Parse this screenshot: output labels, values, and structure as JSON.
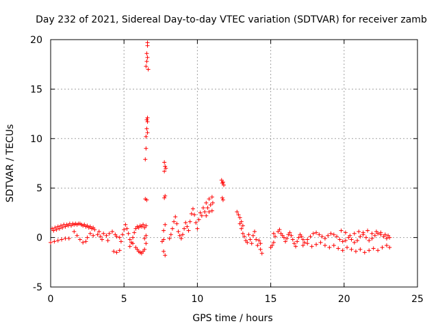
{
  "chart_data": {
    "type": "scatter",
    "title": "Day 232 of 2021, Sidereal Day-to-day VTEC variation (SDTVAR) for receiver zamb",
    "xlabel": "GPS time / hours",
    "ylabel": "SDTVAR / TECUs",
    "xlim": [
      0,
      25
    ],
    "ylim": [
      -5,
      20
    ],
    "xticks": [
      0,
      5,
      10,
      15,
      20,
      25
    ],
    "yticks": [
      -5,
      0,
      5,
      10,
      15,
      20
    ],
    "grid": true,
    "marker": "+",
    "color": "#ff0000",
    "series": [
      {
        "name": "SDTVAR",
        "points": [
          [
            0.0,
            -0.5
          ],
          [
            0.1,
            0.9
          ],
          [
            0.2,
            0.7
          ],
          [
            0.25,
            -0.4
          ],
          [
            0.3,
            1.0
          ],
          [
            0.4,
            0.8
          ],
          [
            0.5,
            -0.3
          ],
          [
            0.5,
            1.1
          ],
          [
            0.6,
            0.9
          ],
          [
            0.7,
            1.2
          ],
          [
            0.75,
            -0.2
          ],
          [
            0.8,
            1.0
          ],
          [
            0.9,
            1.3
          ],
          [
            1.0,
            1.1
          ],
          [
            1.0,
            -0.1
          ],
          [
            1.1,
            1.3
          ],
          [
            1.2,
            1.2
          ],
          [
            1.25,
            -0.1
          ],
          [
            1.3,
            1.4
          ],
          [
            1.4,
            1.2
          ],
          [
            1.5,
            1.4
          ],
          [
            1.6,
            1.3
          ],
          [
            1.7,
            1.4
          ],
          [
            1.8,
            1.3
          ],
          [
            1.9,
            1.4
          ],
          [
            2.0,
            1.4
          ],
          [
            2.1,
            1.3
          ],
          [
            2.2,
            1.2
          ],
          [
            2.3,
            1.3
          ],
          [
            2.4,
            1.1
          ],
          [
            2.5,
            1.2
          ],
          [
            2.6,
            1.0
          ],
          [
            2.7,
            1.1
          ],
          [
            2.8,
            0.9
          ],
          [
            2.9,
            1.0
          ],
          [
            3.0,
            0.8
          ],
          [
            1.6,
            0.6
          ],
          [
            1.8,
            0.2
          ],
          [
            2.0,
            -0.2
          ],
          [
            2.2,
            -0.5
          ],
          [
            2.4,
            -0.4
          ],
          [
            2.5,
            0.0
          ],
          [
            2.7,
            0.4
          ],
          [
            2.9,
            0.2
          ],
          [
            3.2,
            0.3
          ],
          [
            3.3,
            0.6
          ],
          [
            3.4,
            0.1
          ],
          [
            3.5,
            -0.2
          ],
          [
            3.6,
            0.4
          ],
          [
            3.8,
            0.2
          ],
          [
            3.9,
            -0.3
          ],
          [
            4.0,
            0.4
          ],
          [
            4.2,
            0.6
          ],
          [
            4.4,
            0.3
          ],
          [
            4.5,
            0.1
          ],
          [
            4.7,
            0.0
          ],
          [
            4.9,
            0.3
          ],
          [
            4.3,
            -1.4
          ],
          [
            4.5,
            -1.5
          ],
          [
            4.7,
            -1.3
          ],
          [
            4.8,
            -0.4
          ],
          [
            5.0,
            0.8
          ],
          [
            5.1,
            1.3
          ],
          [
            5.2,
            0.9
          ],
          [
            5.3,
            0.4
          ],
          [
            5.4,
            -0.2
          ],
          [
            5.5,
            -0.5
          ],
          [
            5.6,
            0.0
          ],
          [
            5.7,
            0.5
          ],
          [
            5.8,
            0.9
          ],
          [
            5.9,
            1.1
          ],
          [
            6.0,
            1.0
          ],
          [
            6.1,
            1.2
          ],
          [
            6.2,
            1.1
          ],
          [
            6.3,
            1.3
          ],
          [
            6.4,
            1.0
          ],
          [
            6.5,
            1.2
          ],
          [
            5.4,
            -0.9
          ],
          [
            5.6,
            -0.6
          ],
          [
            5.8,
            -1.0
          ],
          [
            5.9,
            -1.2
          ],
          [
            6.0,
            -1.4
          ],
          [
            6.1,
            -1.5
          ],
          [
            6.2,
            -1.6
          ],
          [
            6.3,
            -1.4
          ],
          [
            6.4,
            -1.2
          ],
          [
            6.5,
            -0.6
          ],
          [
            6.4,
            -0.1
          ],
          [
            6.5,
            0.2
          ],
          [
            6.45,
            3.9
          ],
          [
            6.55,
            3.8
          ],
          [
            6.45,
            7.9
          ],
          [
            6.5,
            9.0
          ],
          [
            6.5,
            10.2
          ],
          [
            6.55,
            11.0
          ],
          [
            6.6,
            10.6
          ],
          [
            6.55,
            11.9
          ],
          [
            6.6,
            12.1
          ],
          [
            6.6,
            11.7
          ],
          [
            6.5,
            17.3
          ],
          [
            6.55,
            17.8
          ],
          [
            6.6,
            18.2
          ],
          [
            6.55,
            18.6
          ],
          [
            6.65,
            17.0
          ],
          [
            6.6,
            19.7
          ],
          [
            6.6,
            19.4
          ],
          [
            7.6,
            -0.4
          ],
          [
            7.7,
            -0.2
          ],
          [
            7.7,
            0.7
          ],
          [
            7.8,
            1.3
          ],
          [
            7.7,
            -1.4
          ],
          [
            7.8,
            -1.8
          ],
          [
            7.75,
            4.0
          ],
          [
            7.8,
            4.2
          ],
          [
            7.75,
            6.7
          ],
          [
            7.8,
            7.2
          ],
          [
            7.75,
            7.6
          ],
          [
            7.85,
            7.0
          ],
          [
            8.1,
            -0.1
          ],
          [
            8.2,
            0.3
          ],
          [
            8.3,
            0.9
          ],
          [
            8.4,
            1.6
          ],
          [
            8.5,
            2.1
          ],
          [
            8.6,
            1.4
          ],
          [
            8.7,
            0.6
          ],
          [
            8.8,
            0.2
          ],
          [
            8.9,
            -0.1
          ],
          [
            9.0,
            0.3
          ],
          [
            9.1,
            0.9
          ],
          [
            9.2,
            1.5
          ],
          [
            9.3,
            1.1
          ],
          [
            9.4,
            0.7
          ],
          [
            9.5,
            1.6
          ],
          [
            9.6,
            2.4
          ],
          [
            9.7,
            2.9
          ],
          [
            9.8,
            2.3
          ],
          [
            9.9,
            1.5
          ],
          [
            10.0,
            0.9
          ],
          [
            10.1,
            1.8
          ],
          [
            10.2,
            2.5
          ],
          [
            10.3,
            2.2
          ],
          [
            10.4,
            3.0
          ],
          [
            10.5,
            2.6
          ],
          [
            10.6,
            3.5
          ],
          [
            10.7,
            3.0
          ],
          [
            10.8,
            3.9
          ],
          [
            10.9,
            3.3
          ],
          [
            11.0,
            4.1
          ],
          [
            11.05,
            3.5
          ],
          [
            10.6,
            2.2
          ],
          [
            10.8,
            2.6
          ],
          [
            11.0,
            2.7
          ],
          [
            11.7,
            4.0
          ],
          [
            11.75,
            3.8
          ],
          [
            11.65,
            5.8
          ],
          [
            11.7,
            5.5
          ],
          [
            11.8,
            5.3
          ],
          [
            11.75,
            5.6
          ],
          [
            12.7,
            2.6
          ],
          [
            12.8,
            2.3
          ],
          [
            12.9,
            2.0
          ],
          [
            13.0,
            1.6
          ],
          [
            13.1,
            1.2
          ],
          [
            12.9,
            1.4
          ],
          [
            13.0,
            0.9
          ],
          [
            13.1,
            0.4
          ],
          [
            13.2,
            0.1
          ],
          [
            13.3,
            -0.3
          ],
          [
            13.4,
            -0.5
          ],
          [
            13.5,
            0.3
          ],
          [
            13.6,
            -0.2
          ],
          [
            13.7,
            -0.6
          ],
          [
            13.8,
            0.2
          ],
          [
            13.9,
            0.6
          ],
          [
            14.0,
            -0.2
          ],
          [
            14.1,
            -0.8
          ],
          [
            14.2,
            -0.3
          ],
          [
            14.3,
            -1.2
          ],
          [
            14.4,
            -1.6
          ],
          [
            14.3,
            -0.6
          ],
          [
            15.0,
            -1.0
          ],
          [
            15.1,
            -0.8
          ],
          [
            15.2,
            -0.5
          ],
          [
            15.3,
            0.1
          ],
          [
            15.2,
            0.4
          ],
          [
            15.5,
            0.6
          ],
          [
            15.6,
            0.8
          ],
          [
            15.7,
            0.4
          ],
          [
            15.8,
            0.2
          ],
          [
            15.9,
            0.0
          ],
          [
            16.0,
            -0.4
          ],
          [
            16.1,
            -0.1
          ],
          [
            16.2,
            0.3
          ],
          [
            16.3,
            0.5
          ],
          [
            16.4,
            0.2
          ],
          [
            16.5,
            -0.2
          ],
          [
            16.6,
            -0.6
          ],
          [
            16.7,
            -0.9
          ],
          [
            16.8,
            -0.4
          ],
          [
            16.9,
            0.0
          ],
          [
            17.0,
            0.3
          ],
          [
            17.1,
            0.1
          ],
          [
            17.2,
            -0.2
          ],
          [
            17.3,
            -0.5
          ],
          [
            17.5,
            -0.2
          ],
          [
            17.7,
            0.1
          ],
          [
            17.9,
            0.4
          ],
          [
            18.1,
            0.5
          ],
          [
            18.3,
            0.3
          ],
          [
            18.5,
            0.1
          ],
          [
            18.7,
            -0.1
          ],
          [
            18.9,
            0.2
          ],
          [
            19.1,
            0.4
          ],
          [
            19.3,
            0.3
          ],
          [
            19.5,
            0.1
          ],
          [
            19.7,
            -0.2
          ],
          [
            19.9,
            -0.4
          ],
          [
            20.1,
            -0.3
          ],
          [
            20.3,
            0.0
          ],
          [
            20.5,
            -0.2
          ],
          [
            20.7,
            -0.5
          ],
          [
            20.9,
            -0.3
          ],
          [
            21.1,
            0.1
          ],
          [
            21.3,
            0.3
          ],
          [
            21.5,
            0.0
          ],
          [
            21.7,
            -0.3
          ],
          [
            21.9,
            -0.1
          ],
          [
            22.1,
            0.2
          ],
          [
            22.3,
            0.4
          ],
          [
            22.5,
            0.3
          ],
          [
            22.7,
            0.1
          ],
          [
            22.9,
            -0.1
          ],
          [
            23.1,
            0.0
          ],
          [
            17.2,
            -0.8
          ],
          [
            17.5,
            -0.6
          ],
          [
            17.8,
            -0.9
          ],
          [
            18.1,
            -0.7
          ],
          [
            18.4,
            -0.5
          ],
          [
            18.7,
            -0.8
          ],
          [
            19.0,
            -1.0
          ],
          [
            19.3,
            -0.8
          ],
          [
            19.6,
            -1.1
          ],
          [
            19.9,
            -1.3
          ],
          [
            20.2,
            -1.0
          ],
          [
            20.5,
            -1.2
          ],
          [
            20.8,
            -1.4
          ],
          [
            21.1,
            -1.2
          ],
          [
            21.4,
            -1.5
          ],
          [
            21.7,
            -1.3
          ],
          [
            22.0,
            -1.1
          ],
          [
            22.3,
            -1.3
          ],
          [
            22.6,
            -1.0
          ],
          [
            22.9,
            -0.8
          ],
          [
            23.1,
            -1.0
          ],
          [
            19.8,
            0.7
          ],
          [
            20.1,
            0.5
          ],
          [
            20.4,
            0.2
          ],
          [
            20.7,
            0.4
          ],
          [
            21.0,
            0.6
          ],
          [
            21.3,
            0.5
          ],
          [
            21.6,
            0.7
          ],
          [
            21.9,
            0.4
          ],
          [
            22.2,
            0.6
          ],
          [
            22.5,
            0.5
          ],
          [
            22.8,
            0.3
          ],
          [
            23.0,
            0.2
          ]
        ]
      }
    ]
  }
}
